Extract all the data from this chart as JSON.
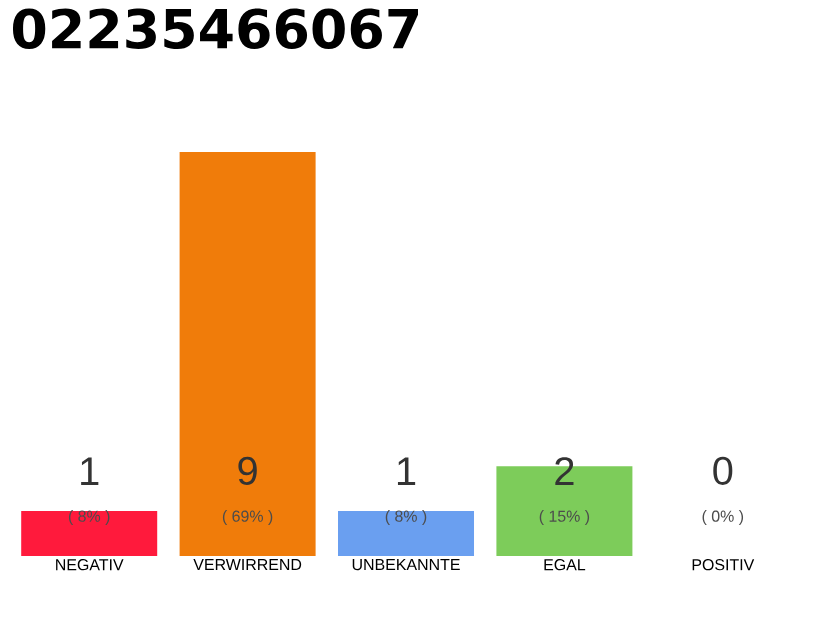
{
  "chart_data": {
    "type": "bar",
    "title": "02235466067",
    "categories": [
      "NEGATIV",
      "VERWIRREND",
      "UNBEKANNTE",
      "EGAL",
      "POSITIV"
    ],
    "values": [
      1,
      9,
      1,
      2,
      0
    ],
    "colors": [
      "#ff1a3c",
      "#f07c0a",
      "#6a9ff0",
      "#7dcc5a",
      "#bbbbbb"
    ],
    "data_labels": true,
    "annotations": [
      "( 8% )",
      "( 69% )",
      "( 8% )",
      "( 15% )",
      "( 0% )"
    ]
  }
}
